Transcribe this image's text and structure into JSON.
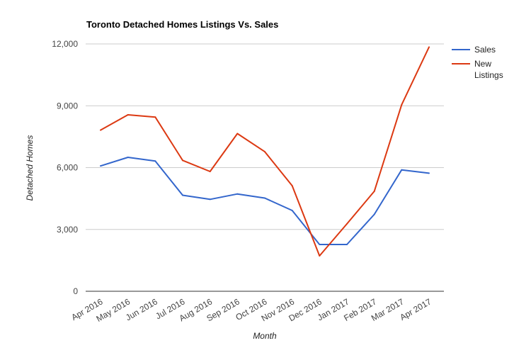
{
  "chart_data": {
    "type": "line",
    "title": "Toronto Detached Homes Listings Vs. Sales",
    "xlabel": "Month",
    "ylabel": "Detached Homes",
    "categories": [
      "Apr 2016",
      "May 2016",
      "Jun 2016",
      "Jul 2016",
      "Aug 2016",
      "Sep 2016",
      "Oct 2016",
      "Nov 2016",
      "Dec 2016",
      "Jan 2017",
      "Feb 2017",
      "Mar 2017",
      "Apr 2017"
    ],
    "ylim": [
      0,
      12000
    ],
    "yticks": [
      0,
      3000,
      6000,
      9000,
      12000
    ],
    "ytick_labels": [
      "0",
      "3,000",
      "6,000",
      "9,000",
      "12,000"
    ],
    "grid": true,
    "legend_position": "right",
    "series": [
      {
        "name": "Sales",
        "color": "#3366cc",
        "legend_lines": [
          "Sales"
        ],
        "values": [
          6080,
          6500,
          6320,
          4660,
          4460,
          4720,
          4520,
          3920,
          2270,
          2270,
          3730,
          5890,
          5730
        ]
      },
      {
        "name": "New Listings",
        "color": "#dc3912",
        "legend_lines": [
          "New",
          "Listings"
        ],
        "values": [
          7820,
          8560,
          8450,
          6350,
          5810,
          7650,
          6770,
          5120,
          1720,
          3270,
          4850,
          9050,
          11850
        ]
      }
    ]
  }
}
